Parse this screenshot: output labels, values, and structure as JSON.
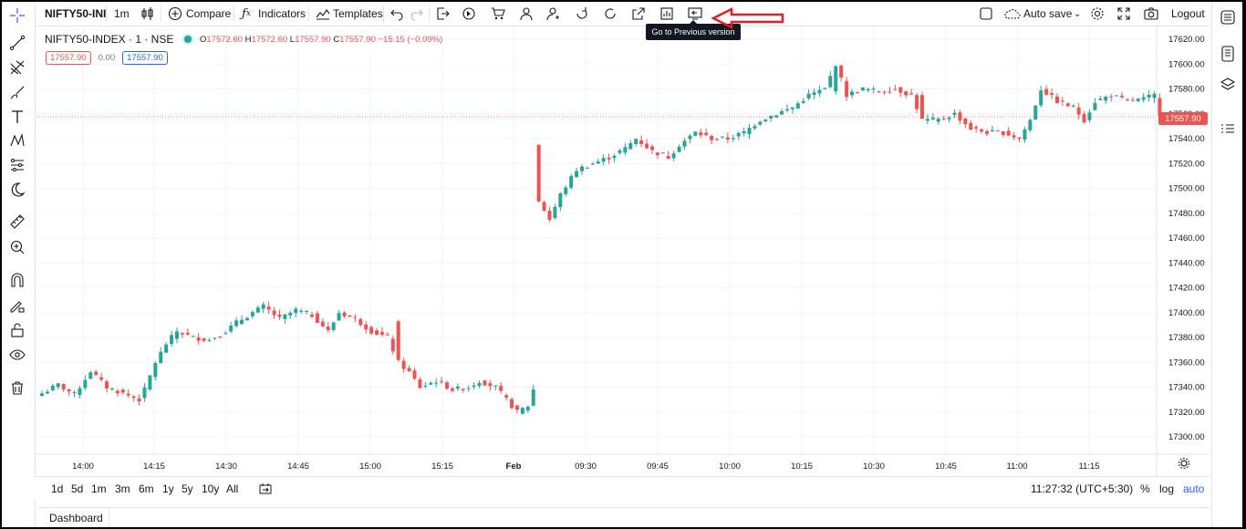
{
  "toolbar": {
    "symbol": "NIFTY50-INI",
    "interval": "1m",
    "compare": "Compare",
    "indicators": "Indicators",
    "templates": "Templates",
    "autosave": "Auto save",
    "logout": "Logout",
    "tooltip": "Go to Previous version"
  },
  "legend": {
    "title": "NIFTY50-INDEX · 1 · NSE",
    "open_label": "O",
    "open": "17572.60",
    "high_label": "H",
    "high": "17572.60",
    "low_label": "L",
    "low": "17557.90",
    "close_label": "C",
    "close": "17557.90",
    "change": "−15.15 (−0.09%)",
    "sell": "17557.90",
    "spread": "0.00",
    "buy": "17557.90"
  },
  "last_price": "17557.90",
  "bottom": {
    "ranges": [
      "1d",
      "5d",
      "1m",
      "3m",
      "6m",
      "1y",
      "5y",
      "10y",
      "All"
    ],
    "clock": "11:27:32 (UTC+5:30)",
    "percent": "%",
    "log": "log",
    "auto": "auto",
    "dashboard": "Dashboard"
  },
  "colors": {
    "up": "#26a69a",
    "down": "#ef5350",
    "accent": "#2962ff"
  },
  "chart_data": {
    "type": "candlestick",
    "y_ticks": [
      17620,
      17600,
      17580,
      17560,
      17540,
      17520,
      17500,
      17480,
      17460,
      17440,
      17420,
      17400,
      17380,
      17360,
      17340,
      17320,
      17300
    ],
    "y_tick_labels": [
      "17620.00",
      "17600.00",
      "17580.00",
      "17560.00",
      "17540.00",
      "17520.00",
      "17500.00",
      "17480.00",
      "17460.00",
      "17440.00",
      "17420.00",
      "17400.00",
      "17380.00",
      "17360.00",
      "17340.00",
      "17320.00",
      "17300.00"
    ],
    "x_ticks": [
      "14:00",
      "14:15",
      "14:30",
      "14:45",
      "15:00",
      "15:15",
      "Feb",
      "09:30",
      "09:45",
      "10:00",
      "10:15",
      "10:30",
      "10:45",
      "11:00",
      "11:15"
    ],
    "ylim": [
      17290,
      17625
    ],
    "last": 17557.9,
    "close_path": [
      [
        0,
        17335
      ],
      [
        3,
        17342
      ],
      [
        6,
        17334
      ],
      [
        9,
        17353
      ],
      [
        12,
        17340
      ],
      [
        15,
        17335
      ],
      [
        18,
        17330
      ],
      [
        19,
        17338
      ],
      [
        21,
        17360
      ],
      [
        23,
        17375
      ],
      [
        25,
        17385
      ],
      [
        28,
        17380
      ],
      [
        31,
        17378
      ],
      [
        34,
        17385
      ],
      [
        36,
        17392
      ],
      [
        39,
        17400
      ],
      [
        41,
        17405
      ],
      [
        44,
        17395
      ],
      [
        47,
        17402
      ],
      [
        50,
        17398
      ],
      [
        53,
        17385
      ],
      [
        55,
        17400
      ],
      [
        58,
        17395
      ],
      [
        61,
        17385
      ],
      [
        64,
        17380
      ],
      [
        66,
        17360
      ],
      [
        68,
        17352
      ],
      [
        70,
        17340
      ],
      [
        73,
        17345
      ],
      [
        76,
        17338
      ],
      [
        79,
        17340
      ],
      [
        81,
        17345
      ],
      [
        84,
        17340
      ],
      [
        86,
        17330
      ],
      [
        88,
        17320
      ],
      [
        90,
        17325
      ],
      [
        91,
        17338
      ],
      [
        92,
        17490
      ],
      [
        94,
        17475
      ],
      [
        96,
        17495
      ],
      [
        99,
        17515
      ],
      [
        102,
        17520
      ],
      [
        105,
        17525
      ],
      [
        108,
        17532
      ],
      [
        110,
        17540
      ],
      [
        113,
        17530
      ],
      [
        116,
        17525
      ],
      [
        118,
        17535
      ],
      [
        121,
        17545
      ],
      [
        124,
        17540
      ],
      [
        127,
        17540
      ],
      [
        130,
        17545
      ],
      [
        133,
        17555
      ],
      [
        136,
        17560
      ],
      [
        139,
        17565
      ],
      [
        142,
        17575
      ],
      [
        145,
        17580
      ],
      [
        147,
        17600
      ],
      [
        149,
        17575
      ],
      [
        152,
        17580
      ],
      [
        155,
        17578
      ],
      [
        158,
        17580
      ],
      [
        161,
        17575
      ],
      [
        163,
        17555
      ],
      [
        166,
        17555
      ],
      [
        169,
        17560
      ],
      [
        172,
        17548
      ],
      [
        175,
        17545
      ],
      [
        178,
        17545
      ],
      [
        181,
        17540
      ],
      [
        183,
        17555
      ],
      [
        185,
        17580
      ],
      [
        188,
        17570
      ],
      [
        191,
        17565
      ],
      [
        193,
        17555
      ],
      [
        195,
        17570
      ],
      [
        198,
        17575
      ],
      [
        201,
        17570
      ],
      [
        204,
        17572
      ],
      [
        206,
        17575
      ],
      [
        207,
        17558
      ]
    ]
  }
}
